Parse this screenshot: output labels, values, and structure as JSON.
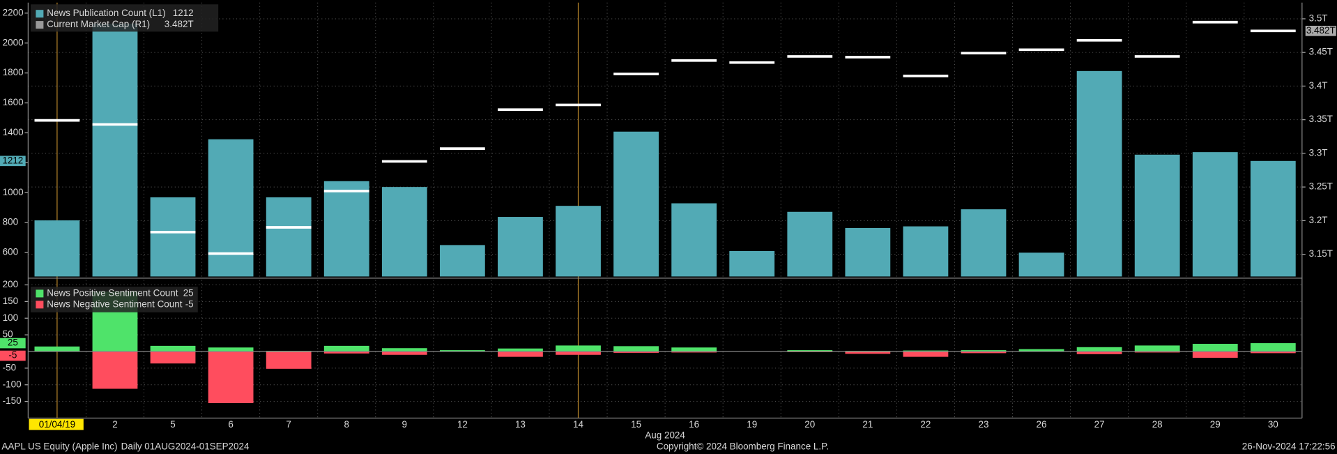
{
  "chart_data": [
    {
      "type": "combo",
      "categories": [
        "01/04/19",
        "2",
        "5",
        "6",
        "7",
        "8",
        "9",
        "12",
        "13",
        "14",
        "15",
        "16",
        "19",
        "20",
        "21",
        "22",
        "23",
        "26",
        "27",
        "28",
        "29",
        "30"
      ],
      "x_label": "Aug 2024",
      "ylim": [
        440,
        2270
      ],
      "yticks": [
        600,
        800,
        1000,
        1200,
        1400,
        1600,
        1800,
        2000,
        2200
      ],
      "y2lim": [
        3.117,
        3.524
      ],
      "y2ticks": [
        {
          "value": 3.15,
          "label": "3.15T"
        },
        {
          "value": 3.2,
          "label": "3.2T"
        },
        {
          "value": 3.25,
          "label": "3.25T"
        },
        {
          "value": 3.3,
          "label": "3.3T"
        },
        {
          "value": 3.35,
          "label": "3.35T"
        },
        {
          "value": 3.4,
          "label": "3.4T"
        },
        {
          "value": 3.45,
          "label": "3.45T"
        },
        {
          "value": 3.5,
          "label": "3.5T"
        }
      ],
      "grid": true,
      "series": [
        {
          "name": "News Publication Count (L1)",
          "type": "bar",
          "color": "#52aab5",
          "values": [
            815,
            2130,
            969,
            1357,
            969,
            1077,
            1038,
            650,
            838,
            912,
            1408,
            929,
            610,
            872,
            764,
            775,
            889,
            599,
            1813,
            1254,
            1271,
            1212
          ]
        },
        {
          "name": "Current Market Cap (R1)",
          "type": "line",
          "axis": "y2",
          "color": "#ffffff",
          "values": [
            3.349,
            3.343,
            3.183,
            3.151,
            3.19,
            3.244,
            3.288,
            3.307,
            3.365,
            3.372,
            3.418,
            3.438,
            3.435,
            3.444,
            3.443,
            3.415,
            3.449,
            3.454,
            3.468,
            3.444,
            3.495,
            3.482
          ],
          "last_value_label": "3.482T"
        }
      ]
    },
    {
      "type": "bar",
      "ylim": [
        -200,
        215
      ],
      "yticks": [
        200,
        150,
        100,
        50,
        -50,
        -100,
        -150
      ],
      "grid": true,
      "series": [
        {
          "name": "News Positive Sentiment Count",
          "color": "#4fe36a",
          "values": [
            15,
            180,
            17,
            12,
            2,
            17,
            10,
            4,
            9,
            18,
            16,
            12,
            0,
            4,
            2,
            3,
            4,
            7,
            13,
            18,
            23,
            25
          ]
        },
        {
          "name": "News Negative Sentiment Count",
          "color": "#ff4d5e",
          "values": [
            0,
            -112,
            -36,
            -155,
            -52,
            -6,
            -10,
            -1,
            -16,
            -10,
            -4,
            -3,
            0,
            -2,
            -7,
            -16,
            -5,
            0,
            -8,
            -3,
            -19,
            -5
          ]
        }
      ]
    }
  ],
  "footer": {
    "security": "AAPL US Equity (Apple Inc)",
    "range": "Daily 01AUG2024-01SEP2024",
    "copyright": "Copyright© 2024 Bloomberg Finance L.P.",
    "timestamp": "26-Nov-2024 17:22:56"
  }
}
